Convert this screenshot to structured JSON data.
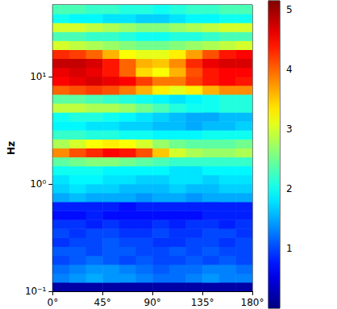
{
  "chart_data": {
    "type": "heatmap",
    "y_label": "Hz",
    "log": "y",
    "xlim": [
      0,
      180
    ],
    "xticks": [
      {
        "value": 0,
        "label": "0°"
      },
      {
        "value": 45,
        "label": "45°"
      },
      {
        "value": 90,
        "label": "90°"
      },
      {
        "value": 135,
        "label": "135°"
      },
      {
        "value": 180,
        "label": "180°"
      }
    ],
    "ylim": [
      0.1,
      46.42
    ],
    "yticks": [
      {
        "value": 0.1,
        "label": "10⁻¹"
      },
      {
        "value": 1,
        "label": "10⁰"
      },
      {
        "value": 10,
        "label": "10¹"
      }
    ],
    "x_bins": [
      0,
      15,
      30,
      45,
      60,
      75,
      90,
      105,
      120,
      135,
      150,
      165,
      180
    ],
    "y_bins": [
      0.1,
      0.1212,
      0.1468,
      0.1778,
      0.2154,
      0.261,
      0.3162,
      0.3831,
      0.4642,
      0.5623,
      0.6813,
      0.8254,
      1,
      1.212,
      1.468,
      1.778,
      2.154,
      2.61,
      3.162,
      3.831,
      4.642,
      5.623,
      6.813,
      8.254,
      10,
      12.12,
      14.68,
      17.78,
      21.54,
      26.1,
      31.62,
      38.31,
      46.42
    ],
    "z": [
      [
        0.2,
        0.2,
        0.2,
        0.2,
        0.2,
        0.2,
        0.2,
        0.2,
        0.2,
        0.2,
        0.2,
        0.2
      ],
      [
        1.3,
        1.4,
        1.5,
        1.4,
        1.4,
        1.3,
        1.2,
        1.2,
        1.3,
        1.4,
        1.3,
        1.3
      ],
      [
        1.2,
        1.3,
        1.4,
        1.4,
        1.3,
        1.2,
        1.1,
        1.2,
        1.2,
        1.3,
        1.3,
        1.2
      ],
      [
        1.0,
        1.1,
        1.2,
        1.1,
        1.0,
        1.1,
        1.0,
        1.0,
        1.1,
        1.0,
        1.1,
        1.0
      ],
      [
        1.1,
        1.1,
        1.0,
        1.1,
        1.1,
        1.0,
        1.0,
        1.1,
        1.0,
        1.1,
        1.0,
        1.0
      ],
      [
        0.9,
        1.0,
        1.0,
        1.1,
        1.0,
        1.0,
        0.9,
        0.9,
        1.0,
        1.0,
        0.9,
        1.0
      ],
      [
        1.0,
        0.9,
        1.0,
        1.0,
        0.9,
        0.9,
        1.0,
        0.9,
        0.9,
        1.0,
        1.0,
        0.9
      ],
      [
        0.9,
        0.9,
        0.8,
        0.9,
        0.8,
        0.8,
        0.9,
        0.8,
        0.9,
        0.9,
        0.8,
        0.9
      ],
      [
        0.7,
        0.7,
        0.8,
        0.7,
        0.7,
        0.7,
        0.7,
        0.7,
        0.7,
        0.8,
        0.8,
        0.8
      ],
      [
        0.8,
        0.8,
        0.8,
        0.8,
        0.7,
        0.8,
        0.8,
        0.8,
        0.8,
        0.8,
        0.8,
        0.8
      ],
      [
        1.5,
        1.6,
        1.5,
        1.5,
        1.5,
        1.4,
        1.5,
        1.5,
        1.4,
        1.5,
        1.5,
        1.5
      ],
      [
        1.7,
        1.8,
        1.7,
        1.7,
        1.6,
        1.6,
        1.6,
        1.7,
        1.6,
        1.6,
        1.7,
        1.7
      ],
      [
        1.8,
        1.9,
        1.9,
        1.8,
        1.8,
        1.7,
        1.7,
        1.8,
        1.8,
        1.7,
        1.8,
        1.8
      ],
      [
        2.0,
        2.0,
        2.0,
        1.9,
        1.9,
        1.9,
        1.9,
        1.8,
        1.8,
        1.9,
        1.9,
        1.9
      ],
      [
        2.4,
        2.5,
        2.6,
        2.6,
        2.5,
        2.4,
        2.3,
        2.2,
        2.2,
        2.2,
        2.2,
        2.2
      ],
      [
        3.8,
        4.1,
        4.3,
        4.5,
        4.4,
        4.1,
        3.5,
        3.0,
        2.8,
        2.7,
        2.7,
        2.8
      ],
      [
        2.8,
        3.0,
        3.2,
        3.3,
        3.2,
        3.0,
        2.7,
        2.5,
        2.4,
        2.4,
        2.4,
        2.5
      ],
      [
        2.2,
        2.2,
        2.1,
        2.1,
        2.0,
        2.0,
        1.9,
        1.9,
        1.9,
        2.0,
        2.0,
        2.0
      ],
      [
        1.9,
        1.9,
        1.8,
        1.8,
        1.7,
        1.7,
        1.6,
        1.6,
        1.5,
        1.6,
        1.6,
        1.7
      ],
      [
        2.0,
        2.1,
        2.1,
        2.0,
        1.9,
        1.8,
        1.7,
        1.6,
        1.5,
        1.5,
        1.6,
        1.6
      ],
      [
        2.9,
        2.9,
        2.8,
        2.8,
        2.7,
        2.5,
        2.3,
        2.1,
        2.0,
        2.0,
        2.1,
        2.1
      ],
      [
        2.4,
        2.4,
        2.3,
        2.2,
        2.1,
        2.0,
        1.9,
        1.8,
        1.9,
        2.0,
        2.1,
        2.1
      ],
      [
        4.0,
        4.1,
        4.2,
        4.1,
        3.9,
        3.6,
        3.3,
        3.1,
        3.3,
        3.6,
        3.8,
        3.8
      ],
      [
        4.5,
        4.6,
        4.7,
        4.6,
        4.5,
        4.2,
        3.9,
        3.9,
        4.2,
        4.4,
        4.5,
        4.4
      ],
      [
        4.6,
        4.7,
        4.6,
        4.4,
        4.0,
        3.4,
        3.2,
        3.6,
        4.1,
        4.4,
        4.5,
        4.5
      ],
      [
        4.8,
        4.8,
        4.7,
        4.4,
        4.0,
        3.6,
        3.5,
        3.8,
        4.3,
        4.6,
        4.7,
        4.7
      ],
      [
        4.3,
        4.2,
        4.0,
        3.6,
        3.2,
        3.1,
        3.1,
        3.3,
        3.7,
        4.1,
        4.4,
        4.5
      ],
      [
        3.0,
        2.9,
        2.8,
        2.7,
        2.6,
        2.5,
        2.5,
        2.6,
        2.7,
        2.8,
        2.9,
        3.0
      ],
      [
        2.3,
        2.3,
        2.2,
        2.2,
        2.1,
        2.0,
        2.0,
        2.1,
        2.1,
        2.2,
        2.3,
        2.3
      ],
      [
        3.0,
        3.0,
        2.9,
        2.8,
        2.7,
        2.6,
        2.6,
        2.7,
        2.8,
        2.9,
        3.0,
        3.0
      ],
      [
        2.0,
        1.9,
        1.9,
        1.8,
        1.8,
        1.7,
        1.7,
        1.8,
        1.9,
        1.9,
        2.0,
        2.0
      ],
      [
        2.3,
        2.3,
        2.2,
        2.2,
        2.1,
        2.1,
        2.0,
        2.1,
        2.2,
        2.2,
        2.3,
        2.3
      ]
    ],
    "colorbar": {
      "range": [
        0,
        5.15
      ],
      "ticks": [
        1,
        2,
        3,
        4,
        5
      ]
    }
  }
}
